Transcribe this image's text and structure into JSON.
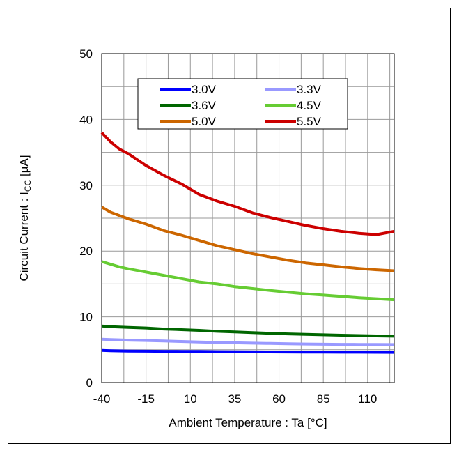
{
  "chart_data": {
    "type": "line",
    "xlabel": "Ambient Temperature : Ta [°C]",
    "ylabel_prefix": "Circuit Current : I",
    "ylabel_sub": "CC",
    "ylabel_suffix": " [µA]",
    "xlim": [
      -40,
      125
    ],
    "ylim": [
      0,
      50
    ],
    "x_ticks": [
      -40,
      -15,
      10,
      35,
      60,
      85,
      110
    ],
    "y_ticks": [
      0,
      10,
      20,
      30,
      40,
      50
    ],
    "grid": true,
    "legend_position": "top",
    "x": [
      -40,
      -35,
      -30,
      -25,
      -15,
      -5,
      5,
      15,
      25,
      35,
      45,
      55,
      65,
      75,
      85,
      95,
      105,
      115,
      125
    ],
    "series": [
      {
        "name": "3.0V",
        "color": "#0000ff",
        "values": [
          4.9,
          4.85,
          4.82,
          4.8,
          4.78,
          4.76,
          4.75,
          4.73,
          4.7,
          4.68,
          4.67,
          4.66,
          4.65,
          4.64,
          4.63,
          4.62,
          4.62,
          4.61,
          4.6
        ]
      },
      {
        "name": "3.3V",
        "color": "#9999ff",
        "values": [
          6.6,
          6.55,
          6.5,
          6.45,
          6.4,
          6.32,
          6.25,
          6.18,
          6.1,
          6.05,
          6.0,
          5.95,
          5.9,
          5.87,
          5.84,
          5.82,
          5.8,
          5.79,
          5.78
        ]
      },
      {
        "name": "3.6V",
        "color": "#006600",
        "values": [
          8.6,
          8.5,
          8.45,
          8.4,
          8.3,
          8.15,
          8.05,
          7.95,
          7.8,
          7.7,
          7.6,
          7.5,
          7.4,
          7.33,
          7.27,
          7.2,
          7.15,
          7.1,
          7.05
        ]
      },
      {
        "name": "4.5V",
        "color": "#66cc33",
        "values": [
          18.4,
          18.0,
          17.6,
          17.3,
          16.8,
          16.3,
          15.8,
          15.3,
          15.0,
          14.6,
          14.3,
          14.0,
          13.75,
          13.5,
          13.3,
          13.1,
          12.9,
          12.75,
          12.6
        ]
      },
      {
        "name": "5.0V",
        "color": "#cc6600",
        "values": [
          26.7,
          25.9,
          25.4,
          24.9,
          24.1,
          23.1,
          22.4,
          21.6,
          20.8,
          20.2,
          19.6,
          19.1,
          18.6,
          18.2,
          17.9,
          17.6,
          17.35,
          17.15,
          17.0
        ]
      },
      {
        "name": "5.5V",
        "color": "#cc0000",
        "values": [
          38.0,
          36.6,
          35.5,
          34.8,
          33.0,
          31.5,
          30.2,
          28.6,
          27.6,
          26.8,
          25.8,
          25.1,
          24.5,
          23.9,
          23.4,
          23.0,
          22.7,
          22.5,
          23.0
        ]
      }
    ]
  }
}
